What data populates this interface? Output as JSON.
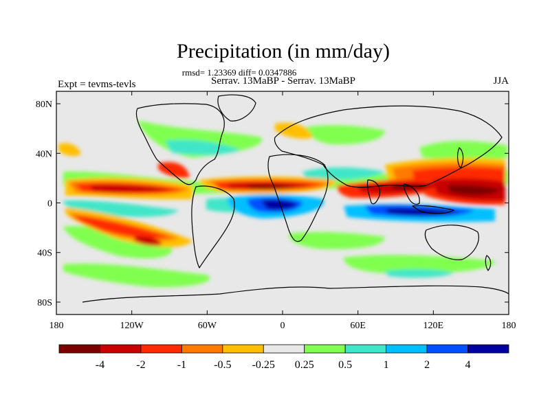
{
  "title": "Precipitation (in mm/day)",
  "stats_line": "rmsd= 1.23369 diff= 0.0347886",
  "comparison": "Serrav.  13MaBP - Serrav.  13MaBP",
  "experiment": "Expt = tevms-tevls",
  "season": "JJA",
  "map": {
    "lon_range": [
      -180,
      180
    ],
    "lat_range": [
      -90,
      90
    ],
    "lon_ticks": [
      {
        "value": -180,
        "label": "180"
      },
      {
        "value": -120,
        "label": "120W"
      },
      {
        "value": -60,
        "label": "60W"
      },
      {
        "value": 0,
        "label": "0"
      },
      {
        "value": 60,
        "label": "60E"
      },
      {
        "value": 120,
        "label": "120E"
      },
      {
        "value": 180,
        "label": "180"
      }
    ],
    "lat_ticks": [
      {
        "value": 80,
        "label": "80N"
      },
      {
        "value": 40,
        "label": "40N"
      },
      {
        "value": 0,
        "label": "0"
      },
      {
        "value": -40,
        "label": "40S"
      },
      {
        "value": -80,
        "label": "80S"
      }
    ],
    "background_color": "#e8e8e8"
  },
  "colorbar": {
    "colors": [
      "#7a0000",
      "#c80000",
      "#ff2a00",
      "#ff7a00",
      "#ffbf00",
      "#e8e8e8",
      "#80ff50",
      "#40e6c8",
      "#00bfff",
      "#0050ff",
      "#0000a0"
    ],
    "labels": [
      "-4",
      "-2",
      "-1",
      "-0.5",
      "-0.25",
      "0.25",
      "0.5",
      "1",
      "2",
      "4"
    ]
  }
}
